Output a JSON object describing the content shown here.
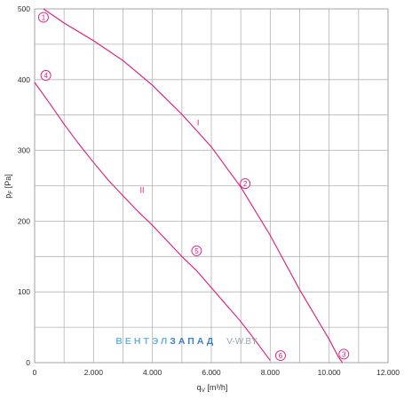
{
  "chart_data": {
    "type": "line",
    "xlabel": "q_V [m³/h]",
    "ylabel": "p_F [Pa]",
    "xlim": [
      0,
      12000
    ],
    "ylim": [
      0,
      500
    ],
    "x_ticks": [
      "0",
      "2.000",
      "4.000",
      "6.000",
      "8.000",
      "10.000",
      "12.000"
    ],
    "y_ticks": [
      "0",
      "100",
      "200",
      "300",
      "400",
      "500"
    ],
    "grid": true,
    "colors": {
      "curve": "#e0197d",
      "grid": "#b4b4b4",
      "axis": "#888888"
    },
    "series": [
      {
        "name": "I",
        "points": [
          [
            300,
            500
          ],
          [
            1000,
            480
          ],
          [
            2000,
            455
          ],
          [
            3000,
            427
          ],
          [
            4000,
            392
          ],
          [
            5000,
            351
          ],
          [
            6000,
            305
          ],
          [
            7000,
            248
          ],
          [
            8000,
            180
          ],
          [
            9000,
            103
          ],
          [
            10000,
            33
          ],
          [
            10300,
            9
          ],
          [
            10450,
            0
          ]
        ]
      },
      {
        "name": "II",
        "points": [
          [
            0,
            396
          ],
          [
            500,
            367
          ],
          [
            1000,
            337
          ],
          [
            1500,
            309
          ],
          [
            2000,
            283
          ],
          [
            2500,
            258
          ],
          [
            3000,
            236
          ],
          [
            3500,
            214
          ],
          [
            4000,
            194
          ],
          [
            4500,
            172
          ],
          [
            5000,
            150
          ],
          [
            5500,
            130
          ],
          [
            6000,
            106
          ],
          [
            6500,
            82
          ],
          [
            7000,
            58
          ],
          [
            7500,
            31
          ],
          [
            8000,
            3
          ]
        ]
      }
    ],
    "markers": [
      {
        "label": "1",
        "x": 300,
        "y": 488
      },
      {
        "label": "2",
        "x": 7150,
        "y": 253
      },
      {
        "label": "3",
        "x": 10500,
        "y": 12
      },
      {
        "label": "4",
        "x": 380,
        "y": 406
      },
      {
        "label": "5",
        "x": 5500,
        "y": 158
      },
      {
        "label": "6",
        "x": 8350,
        "y": 10
      }
    ],
    "curve_labels": [
      {
        "label": "I",
        "x": 5550,
        "y": 335
      },
      {
        "label": "II",
        "x": 3650,
        "y": 240
      }
    ]
  },
  "watermark": {
    "part1": "ВЕНТЭЛ",
    "part2": "ЗАПАД",
    "part3": "V-W.BY",
    "color1": "#6cb6e6",
    "color2": "#3c82c8"
  }
}
